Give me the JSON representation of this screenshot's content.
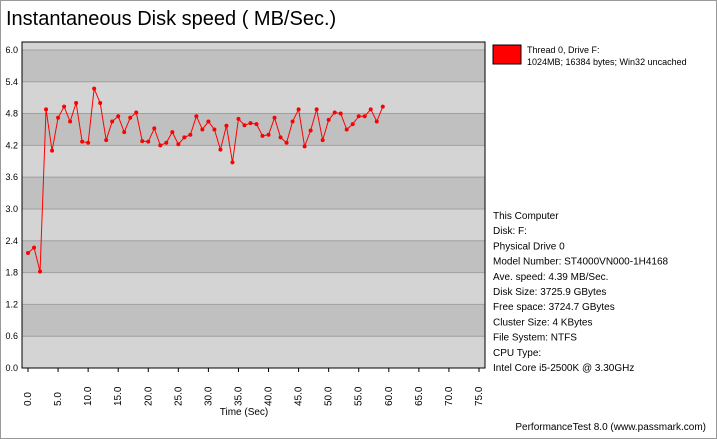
{
  "chart_data": {
    "type": "line",
    "title": "Instantaneous Disk speed ( MB/Sec.)",
    "x_label": "Time (Sec)",
    "x": [
      0,
      1,
      2,
      3,
      4,
      5,
      6,
      7,
      8,
      9,
      10,
      11,
      12,
      13,
      14,
      15,
      16,
      17,
      18,
      19,
      20,
      21,
      22,
      23,
      24,
      25,
      26,
      27,
      28,
      29,
      30,
      31,
      32,
      33,
      34,
      35,
      36,
      37,
      38,
      39,
      40,
      41,
      42,
      43,
      44,
      45,
      46,
      47,
      48,
      49,
      50,
      51,
      52,
      53,
      54,
      55,
      56,
      57,
      58,
      59
    ],
    "series": [
      {
        "name": "Thread 0, Drive F:",
        "detail": "1024MB; 16384 bytes; Win32 uncached",
        "color": "#ff0000",
        "values": [
          2.17,
          2.27,
          1.82,
          4.88,
          4.1,
          4.72,
          4.93,
          4.65,
          5.0,
          4.27,
          4.25,
          5.27,
          5.0,
          4.3,
          4.65,
          4.75,
          4.45,
          4.72,
          4.82,
          4.28,
          4.27,
          4.52,
          4.2,
          4.25,
          4.45,
          4.22,
          4.35,
          4.4,
          4.75,
          4.5,
          4.65,
          4.5,
          4.12,
          4.57,
          3.88,
          4.7,
          4.58,
          4.62,
          4.6,
          4.38,
          4.4,
          4.72,
          4.35,
          4.25,
          4.65,
          4.88,
          4.18,
          4.48,
          4.88,
          4.3,
          4.68,
          4.82,
          4.8,
          4.5,
          4.6,
          4.75,
          4.75,
          4.88,
          4.65,
          4.93
        ]
      }
    ],
    "xlim": [
      -1,
      76
    ],
    "ylim": [
      0,
      6.15
    ],
    "xticks": [
      {
        "value": 0,
        "label": "0.0"
      },
      {
        "value": 5,
        "label": "5.0"
      },
      {
        "value": 10,
        "label": "10.0"
      },
      {
        "value": 15,
        "label": "15.0"
      },
      {
        "value": 20,
        "label": "20.0"
      },
      {
        "value": 25,
        "label": "25.0"
      },
      {
        "value": 30,
        "label": "30.0"
      },
      {
        "value": 35,
        "label": "35.0"
      },
      {
        "value": 40,
        "label": "40.0"
      },
      {
        "value": 45,
        "label": "45.0"
      },
      {
        "value": 50,
        "label": "50.0"
      },
      {
        "value": 55,
        "label": "55.0"
      },
      {
        "value": 60,
        "label": "60.0"
      },
      {
        "value": 65,
        "label": "65.0"
      },
      {
        "value": 70,
        "label": "70.0"
      },
      {
        "value": 75,
        "label": "75.0"
      }
    ],
    "yticks": [
      {
        "value": 0,
        "label": "0.0"
      },
      {
        "value": 0.6,
        "label": "0.6"
      },
      {
        "value": 1.2,
        "label": "1.2"
      },
      {
        "value": 1.8,
        "label": "1.8"
      },
      {
        "value": 2.4,
        "label": "2.4"
      },
      {
        "value": 3.0,
        "label": "3.0"
      },
      {
        "value": 3.6,
        "label": "3.6"
      },
      {
        "value": 4.2,
        "label": "4.2"
      },
      {
        "value": 4.8,
        "label": "4.8"
      },
      {
        "value": 5.4,
        "label": "5.4"
      },
      {
        "value": 6.0,
        "label": "6.0"
      }
    ],
    "grid": true,
    "info": [
      "This Computer",
      "Disk: F:",
      "Physical Drive 0",
      "Model Number: ST4000VN000-1H4168",
      "Ave. speed: 4.39 MB/Sec.",
      "Disk Size: 3725.9 GBytes",
      "Free space: 3724.7 GBytes",
      "Cluster Size: 4 KBytes",
      "File System: NTFS",
      "CPU Type:",
      "Intel Core i5-2500K @ 3.30GHz"
    ],
    "footer": "PerformanceTest 8.0 (www.passmark.com)"
  }
}
